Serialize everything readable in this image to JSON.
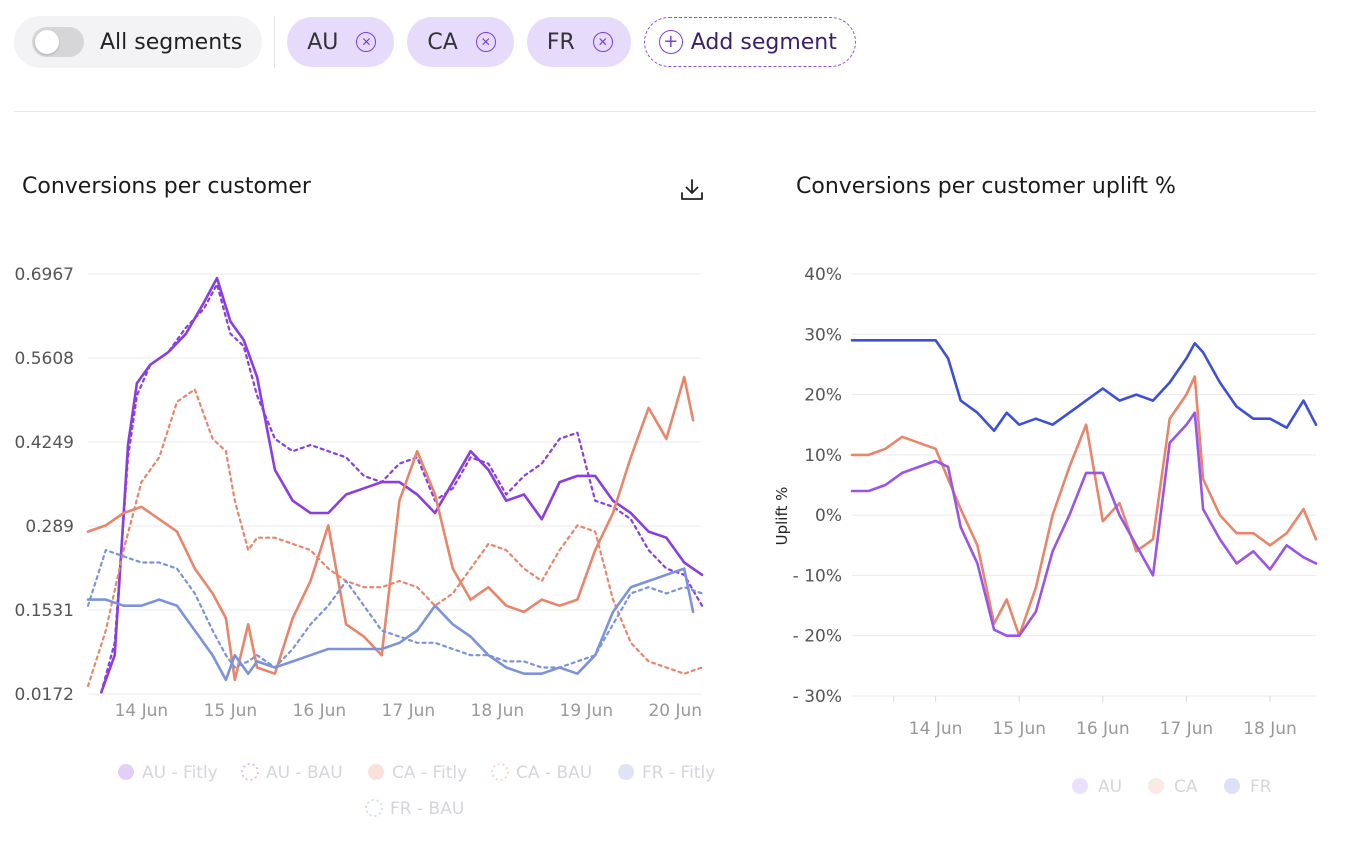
{
  "filters": {
    "toggle_label": "All segments",
    "chips": [
      {
        "label": "AU"
      },
      {
        "label": "CA"
      },
      {
        "label": "FR"
      }
    ],
    "add_label": "Add segment"
  },
  "colors": {
    "AU": "#8a3ee0",
    "CA": "#e8856a",
    "FR": "#7c93db",
    "FR_uplift": "#3d4fd8",
    "AU_uplift": "#9a55e6",
    "chip_bg": "#e6dbfb"
  },
  "chart_data": [
    {
      "type": "line",
      "title": "Conversions per customer",
      "xlabel": "",
      "ylabel": "",
      "ylim": [
        0.0172,
        0.6967
      ],
      "y_ticks": [
        "0.6967",
        "0.5608",
        "0.4249",
        "0.289",
        "0.1531",
        "0.0172"
      ],
      "x_ticks": [
        "14 Jun",
        "15 Jun",
        "16 Jun",
        "17 Jun",
        "18 Jun",
        "19 Jun",
        "20 Jun"
      ],
      "x_range": [
        13.4,
        20.3
      ],
      "legend": [
        "AU - Fitly",
        "AU - BAU",
        "CA - Fitly",
        "CA - BAU",
        "FR - Fitly",
        "FR - BAU"
      ],
      "series": [
        {
          "name": "AU - Fitly",
          "style": "solid",
          "x": [
            13.55,
            13.7,
            13.85,
            13.95,
            14.1,
            14.3,
            14.5,
            14.7,
            14.85,
            15.0,
            15.15,
            15.3,
            15.5,
            15.7,
            15.9,
            16.1,
            16.3,
            16.5,
            16.7,
            16.9,
            17.1,
            17.3,
            17.5,
            17.7,
            17.9,
            18.1,
            18.3,
            18.5,
            18.7,
            18.9,
            19.1,
            19.3,
            19.5,
            19.7,
            19.9,
            20.1,
            20.3
          ],
          "values": [
            0.02,
            0.08,
            0.42,
            0.52,
            0.55,
            0.57,
            0.6,
            0.65,
            0.69,
            0.62,
            0.59,
            0.53,
            0.38,
            0.33,
            0.31,
            0.31,
            0.34,
            0.35,
            0.36,
            0.36,
            0.34,
            0.31,
            0.36,
            0.41,
            0.38,
            0.33,
            0.34,
            0.3,
            0.36,
            0.37,
            0.37,
            0.33,
            0.31,
            0.28,
            0.27,
            0.23,
            0.21
          ]
        },
        {
          "name": "AU - BAU",
          "style": "dashed",
          "x": [
            13.55,
            13.7,
            13.85,
            13.95,
            14.1,
            14.3,
            14.5,
            14.7,
            14.85,
            15.0,
            15.15,
            15.3,
            15.5,
            15.7,
            15.9,
            16.1,
            16.3,
            16.5,
            16.7,
            16.9,
            17.1,
            17.3,
            17.5,
            17.7,
            17.9,
            18.1,
            18.3,
            18.5,
            18.7,
            18.9,
            19.1,
            19.3,
            19.5,
            19.7,
            19.9,
            20.1,
            20.3
          ],
          "values": [
            0.02,
            0.1,
            0.4,
            0.5,
            0.55,
            0.57,
            0.61,
            0.64,
            0.68,
            0.6,
            0.58,
            0.5,
            0.43,
            0.41,
            0.42,
            0.41,
            0.4,
            0.37,
            0.36,
            0.39,
            0.4,
            0.33,
            0.35,
            0.4,
            0.39,
            0.34,
            0.37,
            0.39,
            0.43,
            0.44,
            0.33,
            0.32,
            0.3,
            0.25,
            0.22,
            0.21,
            0.16
          ]
        },
        {
          "name": "CA - Fitly",
          "style": "solid",
          "x": [
            13.4,
            13.6,
            13.8,
            14.0,
            14.2,
            14.4,
            14.6,
            14.8,
            14.95,
            15.05,
            15.2,
            15.3,
            15.5,
            15.7,
            15.9,
            16.1,
            16.3,
            16.5,
            16.7,
            16.9,
            17.1,
            17.3,
            17.5,
            17.7,
            17.9,
            18.1,
            18.3,
            18.5,
            18.7,
            18.9,
            19.1,
            19.3,
            19.5,
            19.7,
            19.9,
            20.1,
            20.2
          ],
          "values": [
            0.28,
            0.29,
            0.31,
            0.32,
            0.3,
            0.28,
            0.22,
            0.18,
            0.14,
            0.04,
            0.13,
            0.06,
            0.05,
            0.14,
            0.2,
            0.29,
            0.13,
            0.11,
            0.08,
            0.33,
            0.41,
            0.34,
            0.22,
            0.17,
            0.19,
            0.16,
            0.15,
            0.17,
            0.16,
            0.17,
            0.25,
            0.31,
            0.4,
            0.48,
            0.43,
            0.53,
            0.46
          ]
        },
        {
          "name": "CA - BAU",
          "style": "dashed",
          "x": [
            13.4,
            13.6,
            13.8,
            14.0,
            14.2,
            14.4,
            14.6,
            14.8,
            14.95,
            15.05,
            15.2,
            15.3,
            15.5,
            15.7,
            15.9,
            16.1,
            16.3,
            16.5,
            16.7,
            16.9,
            17.1,
            17.3,
            17.5,
            17.7,
            17.9,
            18.1,
            18.3,
            18.5,
            18.7,
            18.9,
            19.1,
            19.3,
            19.5,
            19.7,
            19.9,
            20.1,
            20.3
          ],
          "values": [
            0.03,
            0.12,
            0.25,
            0.36,
            0.4,
            0.49,
            0.51,
            0.43,
            0.41,
            0.33,
            0.25,
            0.27,
            0.27,
            0.26,
            0.25,
            0.22,
            0.2,
            0.19,
            0.19,
            0.2,
            0.19,
            0.16,
            0.18,
            0.22,
            0.26,
            0.25,
            0.22,
            0.2,
            0.25,
            0.29,
            0.28,
            0.17,
            0.1,
            0.07,
            0.06,
            0.05,
            0.06
          ]
        },
        {
          "name": "FR - Fitly",
          "style": "solid",
          "x": [
            13.4,
            13.6,
            13.8,
            14.0,
            14.2,
            14.4,
            14.6,
            14.8,
            14.95,
            15.05,
            15.2,
            15.3,
            15.5,
            15.7,
            15.9,
            16.1,
            16.3,
            16.5,
            16.7,
            16.9,
            17.1,
            17.3,
            17.5,
            17.7,
            17.9,
            18.1,
            18.3,
            18.5,
            18.7,
            18.9,
            19.1,
            19.3,
            19.5,
            19.7,
            19.9,
            20.1,
            20.2
          ],
          "values": [
            0.17,
            0.17,
            0.16,
            0.16,
            0.17,
            0.16,
            0.12,
            0.08,
            0.04,
            0.08,
            0.05,
            0.07,
            0.06,
            0.07,
            0.08,
            0.09,
            0.09,
            0.09,
            0.09,
            0.1,
            0.12,
            0.16,
            0.13,
            0.11,
            0.08,
            0.06,
            0.05,
            0.05,
            0.06,
            0.05,
            0.08,
            0.15,
            0.19,
            0.2,
            0.21,
            0.22,
            0.15
          ]
        },
        {
          "name": "FR - BAU",
          "style": "dashed",
          "x": [
            13.4,
            13.6,
            13.8,
            14.0,
            14.2,
            14.4,
            14.6,
            14.8,
            14.95,
            15.05,
            15.2,
            15.3,
            15.5,
            15.7,
            15.9,
            16.1,
            16.3,
            16.5,
            16.7,
            16.9,
            17.1,
            17.3,
            17.5,
            17.7,
            17.9,
            18.1,
            18.3,
            18.5,
            18.7,
            18.9,
            19.1,
            19.3,
            19.5,
            19.7,
            19.9,
            20.1,
            20.3
          ],
          "values": [
            0.16,
            0.25,
            0.24,
            0.23,
            0.23,
            0.22,
            0.18,
            0.12,
            0.08,
            0.06,
            0.07,
            0.08,
            0.06,
            0.09,
            0.13,
            0.16,
            0.2,
            0.16,
            0.12,
            0.11,
            0.1,
            0.1,
            0.09,
            0.08,
            0.08,
            0.07,
            0.07,
            0.06,
            0.06,
            0.07,
            0.08,
            0.13,
            0.18,
            0.19,
            0.18,
            0.19,
            0.18
          ]
        }
      ]
    },
    {
      "type": "line",
      "title": "Conversions per customer uplift %",
      "xlabel": "",
      "ylabel": "Uplift %",
      "ylim": [
        -30,
        40
      ],
      "y_ticks": [
        "40%",
        "30%",
        "20%",
        "10%",
        "0%",
        "- 10%",
        "- 20%",
        "- 30%"
      ],
      "x_ticks": [
        "14 Jun",
        "15 Jun",
        "16 Jun",
        "17 Jun",
        "18 Jun"
      ],
      "x_range": [
        13.0,
        18.55
      ],
      "legend": [
        "AU",
        "CA",
        "FR"
      ],
      "series": [
        {
          "name": "FR",
          "x": [
            13.0,
            13.2,
            13.4,
            13.6,
            13.8,
            14.0,
            14.15,
            14.3,
            14.5,
            14.7,
            14.85,
            15.0,
            15.2,
            15.4,
            15.6,
            15.8,
            16.0,
            16.2,
            16.4,
            16.6,
            16.8,
            17.0,
            17.1,
            17.2,
            17.4,
            17.6,
            17.8,
            18.0,
            18.2,
            18.4,
            18.55
          ],
          "values": [
            29,
            29,
            29,
            29,
            29,
            29,
            26,
            19,
            17,
            14,
            17,
            15,
            16,
            15,
            17,
            19,
            21,
            19,
            20,
            19,
            22,
            26,
            28.5,
            27,
            22,
            18,
            16,
            16,
            14.5,
            19,
            15
          ]
        },
        {
          "name": "CA",
          "x": [
            13.0,
            13.2,
            13.4,
            13.6,
            13.8,
            14.0,
            14.15,
            14.3,
            14.5,
            14.7,
            14.85,
            15.0,
            15.2,
            15.4,
            15.6,
            15.8,
            16.0,
            16.2,
            16.4,
            16.6,
            16.8,
            17.0,
            17.1,
            17.2,
            17.4,
            17.6,
            17.8,
            18.0,
            18.2,
            18.4,
            18.55
          ],
          "values": [
            10,
            10,
            11,
            13,
            12,
            11,
            6,
            1,
            -5,
            -18,
            -14,
            -20,
            -12,
            0,
            8,
            15,
            -1,
            2,
            -6,
            -4,
            16,
            20,
            23,
            6,
            0,
            -3,
            -3,
            -5,
            -3,
            1,
            -4
          ]
        },
        {
          "name": "AU",
          "x": [
            13.0,
            13.2,
            13.4,
            13.6,
            13.8,
            14.0,
            14.15,
            14.3,
            14.5,
            14.7,
            14.85,
            15.0,
            15.2,
            15.4,
            15.6,
            15.8,
            16.0,
            16.2,
            16.4,
            16.6,
            16.8,
            17.0,
            17.1,
            17.2,
            17.4,
            17.6,
            17.8,
            18.0,
            18.2,
            18.4,
            18.55
          ],
          "values": [
            4,
            4,
            5,
            7,
            8,
            9,
            8,
            -2,
            -8,
            -19,
            -20,
            -20,
            -16,
            -6,
            0,
            7,
            7,
            0,
            -5,
            -10,
            12,
            15,
            17,
            1,
            -4,
            -8,
            -6,
            -9,
            -5,
            -7,
            -8
          ]
        }
      ]
    }
  ]
}
